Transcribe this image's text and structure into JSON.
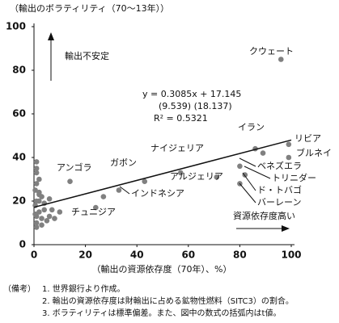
{
  "chart_data": {
    "type": "scatter",
    "y_axis_label": "（輸出のボラティリティ（70～13年））",
    "x_axis_label": "（輸出の資源依存度（70年）、%）",
    "xlim": [
      0,
      100
    ],
    "ylim": [
      0,
      100
    ],
    "xticks": [
      0,
      20,
      40,
      60,
      80,
      100
    ],
    "yticks": [
      0,
      20,
      40,
      60,
      80,
      100
    ],
    "color": "#808080",
    "series": [
      {
        "x": [
          96,
          99,
          99,
          86,
          89,
          80,
          82,
          80,
          57,
          43,
          71,
          14,
          33,
          27,
          24,
          1,
          1,
          2,
          1,
          0.5,
          2,
          3,
          1,
          0.5,
          4,
          2,
          1,
          3,
          5,
          6,
          7,
          8,
          10,
          2,
          1,
          3,
          0.5,
          1,
          2,
          4,
          6,
          1
        ],
        "y": [
          85,
          46,
          40,
          44,
          42,
          36,
          32,
          28,
          33,
          29,
          31,
          29,
          25,
          22,
          17,
          38,
          33,
          30,
          28,
          25,
          24,
          22,
          20,
          18,
          16,
          15,
          13,
          12,
          11,
          13,
          16,
          12,
          15,
          20,
          10,
          9,
          14,
          8,
          23,
          19,
          21,
          35
        ]
      }
    ],
    "trendline": {
      "slope": 0.3085,
      "intercept": 17.145,
      "color": "#111111"
    },
    "equation": [
      "y = 0.3085x + 17.145",
      "(9.539)   (18.137)",
      "R² = 0.5321"
    ],
    "annotations": [
      "クウェート",
      "イラン",
      "リビア",
      "ブルネイ",
      "ベネズエラ",
      "トリニダー",
      "ド・トバゴ",
      "バーレーン",
      "ナイジェリア",
      "ガボン",
      "アルジェリア",
      "アンゴラ",
      "インドネシア",
      "チュニジア"
    ],
    "arrow_labels": [
      "輸出不安定",
      "資源依存度高い"
    ]
  },
  "notes": {
    "label": "（備考）",
    "items": [
      "1. 世界銀行より作成。",
      "2. 輸出の資源依存度は財輸出に占める鉱物性燃料（SITC3）の割合。",
      "3. ボラティリティは標準偏差。また、図中の数式の括弧内はt値。"
    ]
  }
}
